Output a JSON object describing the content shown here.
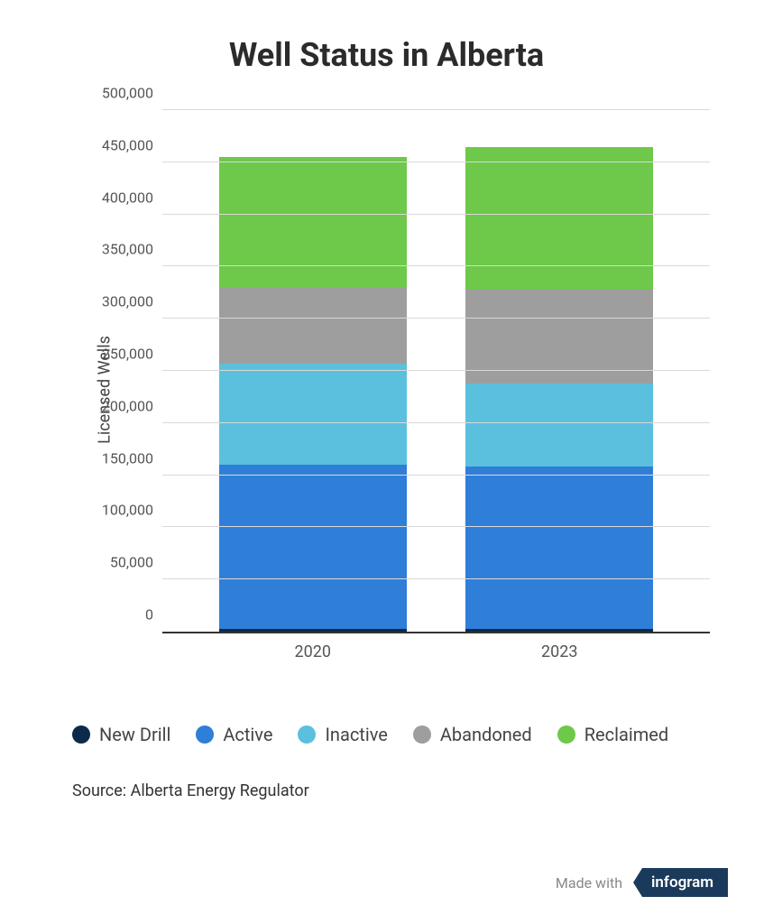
{
  "title": "Well Status in Alberta",
  "title_fontsize": 36,
  "chart": {
    "type": "stacked-bar",
    "ylabel": "Licensed Wells",
    "ylim": [
      0,
      500000
    ],
    "ytick_step": 50000,
    "yticks": [
      "0",
      "50,000",
      "100,000",
      "150,000",
      "200,000",
      "250,000",
      "300,000",
      "350,000",
      "400,000",
      "450,000",
      "500,000"
    ],
    "grid_color": "#d9d9d9",
    "background_color": "#ffffff",
    "axis_color": "#333333",
    "categories": [
      "2020",
      "2023"
    ],
    "series": [
      {
        "key": "new_drill",
        "label": "New Drill",
        "color": "#0b2a4a"
      },
      {
        "key": "active",
        "label": "Active",
        "color": "#2f7ed8"
      },
      {
        "key": "inactive",
        "label": "Inactive",
        "color": "#5bc0de"
      },
      {
        "key": "abandoned",
        "label": "Abandoned",
        "color": "#9e9e9e"
      },
      {
        "key": "reclaimed",
        "label": "Reclaimed",
        "color": "#6ec84a"
      }
    ],
    "data": {
      "2020": {
        "new_drill": 3000,
        "active": 157000,
        "inactive": 97000,
        "abandoned": 73000,
        "reclaimed": 125000
      },
      "2023": {
        "new_drill": 3000,
        "active": 155000,
        "inactive": 80000,
        "abandoned": 90000,
        "reclaimed": 137000
      }
    },
    "bar_width_pct": 38
  },
  "source_label": "Source: Alberta Energy Regulator",
  "footer": {
    "made_with": "Made with",
    "brand": "infogram"
  }
}
